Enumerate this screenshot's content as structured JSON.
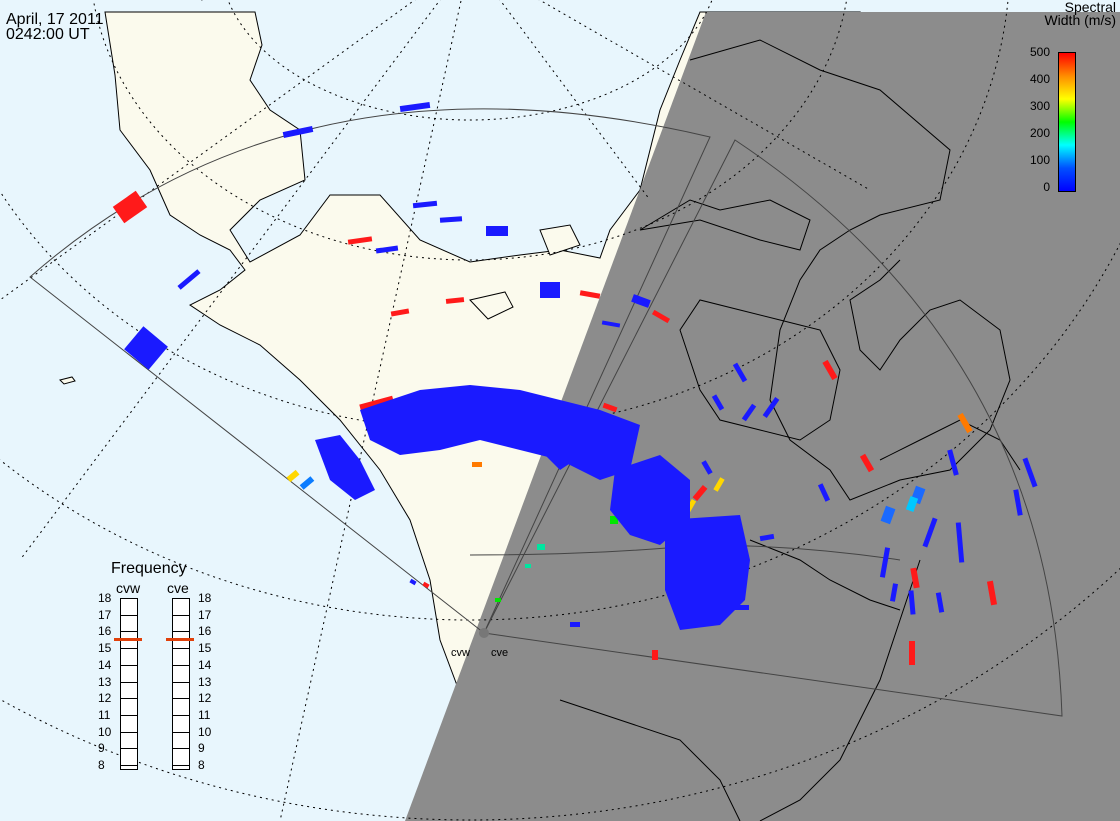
{
  "header": {
    "date": "April, 17 2011",
    "time": "0242:00 UT"
  },
  "colorbar": {
    "title_line1": "Spectral",
    "title_line2": "Width (m/s)",
    "ticks": [
      "500",
      "400",
      "300",
      "200",
      "100",
      "0"
    ],
    "stops": [
      "#ff0000",
      "#ff8c00",
      "#ffff00",
      "#00ff00",
      "#00ffff",
      "#0050ff",
      "#0000ff"
    ]
  },
  "frequency": {
    "title": "Frequency",
    "radar_a": "cvw",
    "radar_b": "cve",
    "ticks": [
      "18",
      "17",
      "16",
      "15",
      "14",
      "13",
      "12",
      "11",
      "10",
      "9",
      "8"
    ],
    "marker_a_mhz": 15.6,
    "marker_b_mhz": 15.6,
    "marker_color": "#e0400a"
  },
  "radars": {
    "west_label": "cvw",
    "east_label": "cve"
  },
  "colors": {
    "ocean": "#e8f6fd",
    "land": "#fbfaed",
    "night": "#8c8c8c",
    "scatter_low": "#1a1aff",
    "scatter_high": "#ff1a1a"
  }
}
